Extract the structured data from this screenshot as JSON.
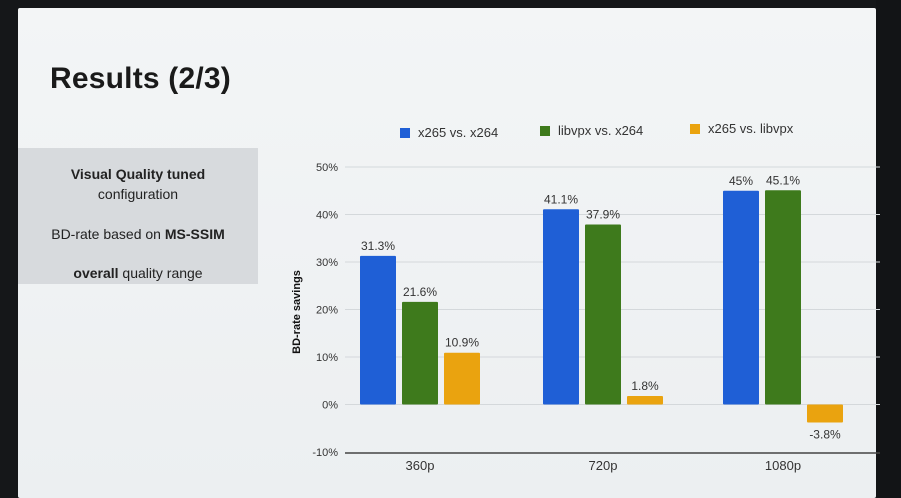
{
  "slide": {
    "title": "Results (2/3)",
    "info": {
      "line1_bold": "Visual Quality tuned",
      "line1_rest": "configuration",
      "line2_pre": "BD-rate based on ",
      "line2_bold": "MS-SSIM",
      "line3_bold": "overall",
      "line3_rest": " quality range"
    }
  },
  "chart_data": {
    "type": "bar",
    "title": "",
    "xlabel": "",
    "ylabel": "BD-rate savings",
    "categories": [
      "360p",
      "720p",
      "1080p"
    ],
    "series": [
      {
        "name": "x265 vs. x264",
        "values": [
          31.3,
          41.1,
          45
        ],
        "labels": [
          "31.3%",
          "41.1%",
          "45%"
        ],
        "color": "#1f5fd6"
      },
      {
        "name": "libvpx vs. x264",
        "values": [
          21.6,
          37.9,
          45.1
        ],
        "labels": [
          "21.6%",
          "37.9%",
          "45.1%"
        ],
        "color": "#3e7a1c"
      },
      {
        "name": "x265 vs. libvpx",
        "values": [
          10.9,
          1.8,
          -3.8
        ],
        "labels": [
          "10.9%",
          "1.8%",
          "-3.8%"
        ],
        "color": "#eaa30f"
      }
    ],
    "ylim": [
      -10,
      50
    ],
    "yticks": [
      -10,
      0,
      10,
      20,
      30,
      40,
      50
    ],
    "ytick_labels": [
      "-10%",
      "0%",
      "10%",
      "20%",
      "30%",
      "40%",
      "50%"
    ],
    "grid": true,
    "legend": "top"
  }
}
